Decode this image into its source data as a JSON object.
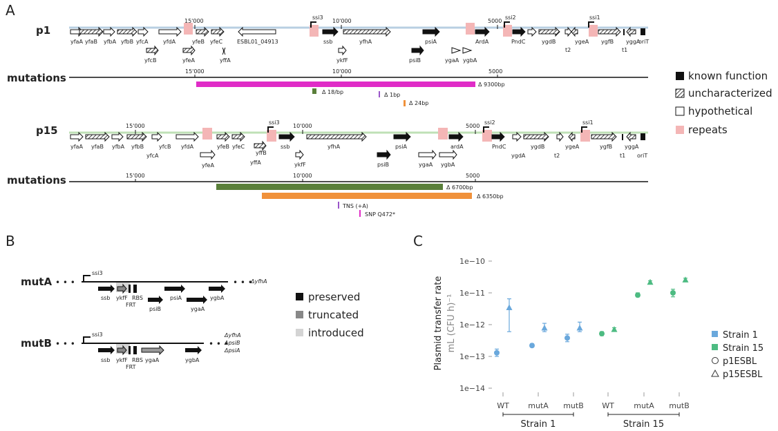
{
  "panels": {
    "a": "A",
    "b": "B",
    "c": "C"
  },
  "panel_a": {
    "tracks": [
      {
        "name": "p1",
        "coords": [
          "15'000",
          "10'000",
          "5000"
        ],
        "sites": [
          "ssi3",
          "ssi2",
          "ssi1"
        ],
        "genes_top": [
          "yfaA",
          "yfaB",
          "yfbA",
          "yfbB",
          "yfcA",
          "yfdA",
          "yfeB",
          "yfeC",
          "ESBL01_04913",
          "ssb",
          "yfhA",
          "psiA",
          "ArdA",
          "PndC",
          "ygdB",
          "t2",
          "ygeA",
          "ygfB",
          "t1",
          "yggA",
          "oriT"
        ],
        "genes_bottom": [
          "yfcB",
          "yfeA",
          "yffA",
          "ykfF",
          "psiB",
          "ygaA",
          "ygbA"
        ],
        "mutations_label": "mutations",
        "mut_coords": [
          "15'000",
          "10'000",
          "5000"
        ],
        "deletions": [
          "Δ 9300bp",
          "Δ 18/bp",
          "Δ 1bp",
          "Δ 24bp"
        ]
      },
      {
        "name": "p15",
        "coords": [
          "15'000",
          "10'000",
          "5000"
        ],
        "sites": [
          "ssi3",
          "ssi2",
          "ssi1"
        ],
        "genes_top": [
          "yfaA",
          "yfaB",
          "yfbA",
          "yfbB",
          "yfcB",
          "yfdA",
          "yfeB",
          "yfeC",
          "ssb",
          "yfhA",
          "psiA",
          "ardA",
          "PndC",
          "ygdB",
          "t2",
          "ygeA",
          "ygfB",
          "t1",
          "yggA",
          "oriT"
        ],
        "genes_bottom": [
          "yfcA",
          "yfeA",
          "yffB",
          "yffA",
          "ykfF",
          "psiB",
          "ygaA",
          "ygbA",
          "ygdA"
        ],
        "mutations_label": "mutations",
        "mut_coords": [
          "15'000",
          "10'000",
          "5000"
        ],
        "deletions": [
          "Δ 6700bp",
          "Δ 6350bp",
          "TNS (+A)",
          "SNP Q472*"
        ]
      }
    ],
    "legend": [
      "known function",
      "uncharacterized",
      "hypothetical",
      "repeats"
    ]
  },
  "panel_b": {
    "constructs": [
      {
        "name": "mutA",
        "dots_left": "• • •",
        "dots_right": "• • •",
        "site": "ssi3",
        "note": "ΔyfhA",
        "genes": [
          "ssb",
          "ykfF",
          "RBS",
          "FRT",
          "psiA",
          "psiB",
          "ygaA",
          "ygbA"
        ]
      },
      {
        "name": "mutB",
        "dots_left": "• • •",
        "dots_right": "• • •",
        "site": "ssi3",
        "note_lines": [
          "ΔyfhA",
          "ΔpsiB",
          "ΔpsiA"
        ],
        "genes": [
          "ssb",
          "ykfF",
          "RBS",
          "FRT",
          "ygaA",
          "ygbA"
        ]
      }
    ],
    "legend": [
      "preserved",
      "truncated",
      "introduced"
    ]
  },
  "colors": {
    "p1_line": "#b8cfe2",
    "p15_line": "#bfe0b6",
    "repeat": "#f4b6b6",
    "p1_del_big": "#e02cc7",
    "green_del": "#5a7f3a",
    "orange_del": "#f0913a",
    "purple_mark": "#9a55c9",
    "strain1": "#6aa8dc",
    "strain15": "#4dbb82"
  },
  "chart_data": {
    "type": "scatter",
    "title": "",
    "ylabel": "Plasmid transfer rate",
    "ylabel2": "mL (CFU h)⁻¹",
    "yscale": "log",
    "ylim": [
      1e-14,
      1e-10
    ],
    "yticks": [
      "1e−14",
      "1e−13",
      "1e−12",
      "1e−11",
      "1e−10"
    ],
    "categories": [
      "WT",
      "mutA",
      "mutB",
      "WT",
      "mutA",
      "mutB"
    ],
    "groups": [
      {
        "label": "Strain 1",
        "categories": [
          0,
          1,
          2
        ]
      },
      {
        "label": "Strain 15",
        "categories": [
          3,
          4,
          5
        ]
      }
    ],
    "series": [
      {
        "name": "Strain 1",
        "plasmid": "p1ESBL",
        "shape": "circle",
        "color": "#6aa8dc",
        "points": [
          {
            "cat": 0,
            "y": 1.3e-13,
            "lo": 1e-13,
            "hi": 1.7e-13
          },
          {
            "cat": 1,
            "y": 2.2e-13,
            "lo": 2e-13,
            "hi": 2.5e-13
          },
          {
            "cat": 2,
            "y": 3.8e-13,
            "lo": 2.9e-13,
            "hi": 5e-13
          }
        ]
      },
      {
        "name": "Strain 1",
        "plasmid": "p15ESBL",
        "shape": "triangle",
        "color": "#6aa8dc",
        "points": [
          {
            "cat": 0,
            "y": 3.5e-12,
            "lo": 6e-13,
            "hi": 6.5e-12
          },
          {
            "cat": 1,
            "y": 8e-13,
            "lo": 6e-13,
            "hi": 1.1e-12
          },
          {
            "cat": 2,
            "y": 8e-13,
            "lo": 6e-13,
            "hi": 1.2e-12
          }
        ]
      },
      {
        "name": "Strain 15",
        "plasmid": "p1ESBL",
        "shape": "circle",
        "color": "#4dbb82",
        "points": [
          {
            "cat": 3,
            "y": 5.2e-13,
            "lo": 4.5e-13,
            "hi": 6e-13
          },
          {
            "cat": 4,
            "y": 8.5e-12,
            "lo": 7.5e-12,
            "hi": 1e-11
          },
          {
            "cat": 5,
            "y": 1e-11,
            "lo": 7.5e-12,
            "hi": 1.3e-11
          }
        ]
      },
      {
        "name": "Strain 15",
        "plasmid": "p15ESBL",
        "shape": "triangle",
        "color": "#4dbb82",
        "points": [
          {
            "cat": 3,
            "y": 7.2e-13,
            "lo": 6.5e-13,
            "hi": 8e-13
          },
          {
            "cat": 4,
            "y": 2.2e-11,
            "lo": 2e-11,
            "hi": 2.4e-11
          },
          {
            "cat": 5,
            "y": 2.6e-11,
            "lo": 2.4e-11,
            "hi": 2.9e-11
          }
        ]
      }
    ],
    "legend": {
      "placement": "right",
      "entries": [
        "Strain 1",
        "Strain 15",
        "p1ESBL",
        "p15ESBL"
      ]
    }
  }
}
